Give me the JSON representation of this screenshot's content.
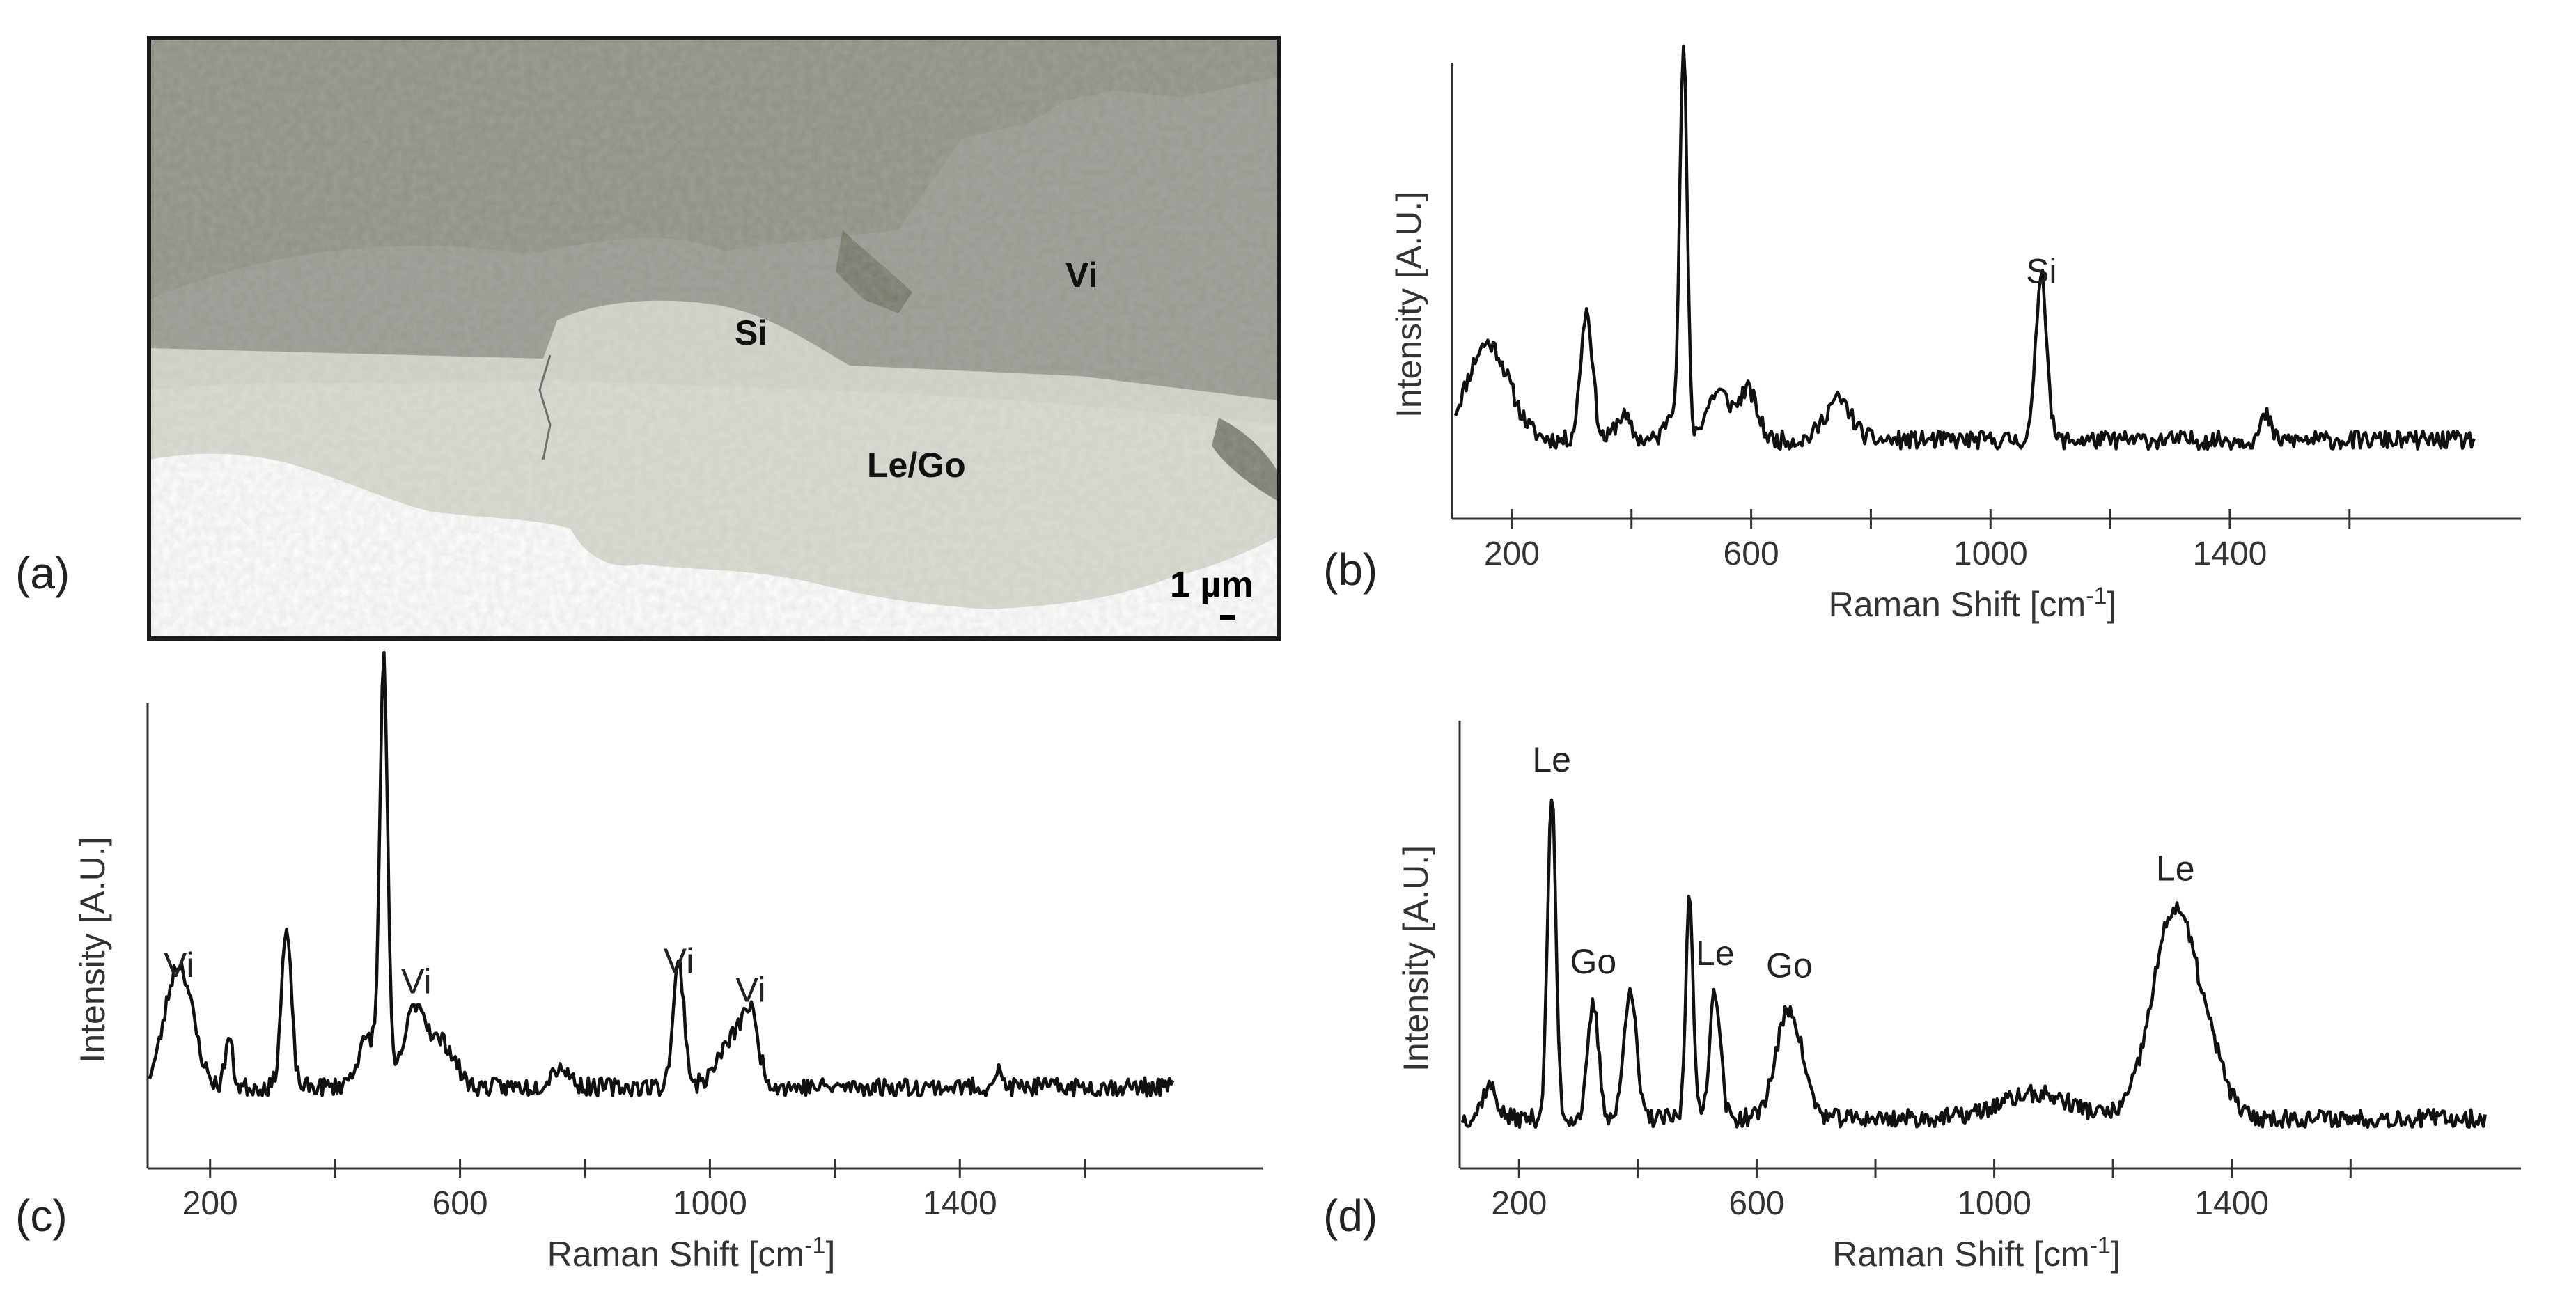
{
  "micrograph": {
    "panel_label": "(a)",
    "region_labels": [
      "Vi",
      "Si",
      "Le/Go"
    ],
    "scale_bar": "1 µm",
    "colors": {
      "upper_gray": "#8e8f86",
      "right_gray": "#979890",
      "lower_light": "#d8dbd1",
      "frame": "#1a1a1a"
    }
  },
  "chart_data": [
    {
      "id": "b",
      "type": "line",
      "panel_label": "(b)",
      "xlabel": "Raman Shift [cm",
      "xlabel_sup": "-1",
      "xlabel_end": "]",
      "ylabel": "Intensity [A.U.]",
      "xlim": [
        100,
        1840
      ],
      "ticks": [
        200,
        400,
        600,
        800,
        1000,
        1200,
        1400,
        1600
      ],
      "tick_labels": [
        200,
        600,
        1000,
        1400
      ],
      "baseline": 0.1,
      "annotations": [
        {
          "text": "Si",
          "x": 1085,
          "peak": 0.42
        }
      ],
      "peaks": [
        {
          "x": 160,
          "h": 0.24,
          "w": 35
        },
        {
          "x": 325,
          "h": 0.32,
          "w": 10
        },
        {
          "x": 385,
          "h": 0.06,
          "w": 12
        },
        {
          "x": 470,
          "h": 0.08,
          "w": 12
        },
        {
          "x": 487,
          "h": 0.95,
          "w": 6
        },
        {
          "x": 545,
          "h": 0.12,
          "w": 20
        },
        {
          "x": 595,
          "h": 0.12,
          "w": 15
        },
        {
          "x": 745,
          "h": 0.1,
          "w": 22
        },
        {
          "x": 1085,
          "h": 0.42,
          "w": 9
        },
        {
          "x": 1460,
          "h": 0.06,
          "w": 8
        }
      ]
    },
    {
      "id": "c",
      "type": "line",
      "panel_label": "(c)",
      "xlabel": "Raman Shift [cm",
      "xlabel_sup": "-1",
      "xlabel_end": "]",
      "ylabel": "Intensity [A.U.]",
      "xlim": [
        100,
        1840
      ],
      "ticks": [
        200,
        400,
        600,
        800,
        1000,
        1200,
        1400,
        1600
      ],
      "tick_labels": [
        200,
        600,
        1000,
        1400
      ],
      "baseline": 0.1,
      "annotations": [
        {
          "text": "Vi",
          "x": 150,
          "peak": 0.3
        },
        {
          "text": "Vi",
          "x": 530,
          "peak": 0.26
        },
        {
          "text": "Vi",
          "x": 950,
          "peak": 0.31
        },
        {
          "text": "Vi",
          "x": 1065,
          "peak": 0.24
        }
      ],
      "peaks": [
        {
          "x": 150,
          "h": 0.3,
          "w": 22
        },
        {
          "x": 230,
          "h": 0.12,
          "w": 6
        },
        {
          "x": 322,
          "h": 0.38,
          "w": 8
        },
        {
          "x": 455,
          "h": 0.12,
          "w": 18
        },
        {
          "x": 478,
          "h": 1.0,
          "w": 6
        },
        {
          "x": 530,
          "h": 0.2,
          "w": 18
        },
        {
          "x": 575,
          "h": 0.1,
          "w": 18
        },
        {
          "x": 760,
          "h": 0.05,
          "w": 15
        },
        {
          "x": 950,
          "h": 0.3,
          "w": 9
        },
        {
          "x": 1040,
          "h": 0.12,
          "w": 25
        },
        {
          "x": 1065,
          "h": 0.12,
          "w": 12
        },
        {
          "x": 1460,
          "h": 0.04,
          "w": 6
        }
      ]
    },
    {
      "id": "d",
      "type": "line",
      "panel_label": "(d)",
      "xlabel": "Raman Shift [cm",
      "xlabel_sup": "-1",
      "xlabel_end": "]",
      "ylabel": "Intensity [A.U.]",
      "xlim": [
        100,
        1840
      ],
      "ticks": [
        200,
        400,
        600,
        800,
        1000,
        1200,
        1400,
        1600
      ],
      "tick_labels": [
        200,
        600,
        1000,
        1400
      ],
      "baseline": 0.05,
      "annotations": [
        {
          "text": "Le",
          "x": 255,
          "peak": 0.84
        },
        {
          "text": "Go",
          "x": 325,
          "peak": 0.34
        },
        {
          "text": "Le",
          "x": 530,
          "peak": 0.36
        },
        {
          "text": "Go",
          "x": 655,
          "peak": 0.33
        },
        {
          "text": "Le",
          "x": 1305,
          "peak": 0.57
        }
      ],
      "peaks": [
        {
          "x": 150,
          "h": 0.08,
          "w": 12
        },
        {
          "x": 255,
          "h": 0.8,
          "w": 7
        },
        {
          "x": 325,
          "h": 0.28,
          "w": 9
        },
        {
          "x": 387,
          "h": 0.33,
          "w": 10
        },
        {
          "x": 487,
          "h": 0.57,
          "w": 6
        },
        {
          "x": 530,
          "h": 0.32,
          "w": 9
        },
        {
          "x": 655,
          "h": 0.27,
          "w": 22
        },
        {
          "x": 1070,
          "h": 0.06,
          "w": 60
        },
        {
          "x": 1305,
          "h": 0.52,
          "w": 38
        },
        {
          "x": 1370,
          "h": 0.08,
          "w": 25
        }
      ]
    }
  ]
}
